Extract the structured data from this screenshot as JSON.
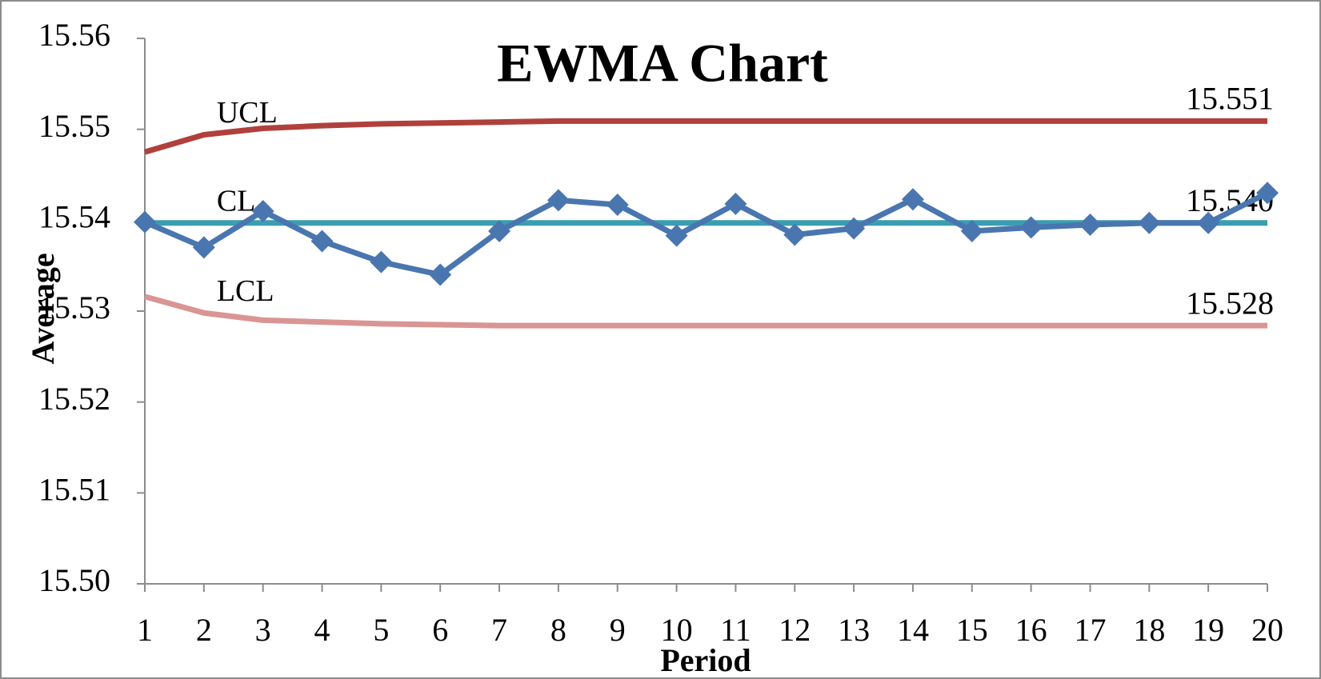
{
  "chart_data": {
    "type": "line",
    "title": "EWMA Chart",
    "x_label": "Period",
    "y_label": "Average",
    "categories": [
      "1",
      "2",
      "3",
      "4",
      "5",
      "6",
      "7",
      "8",
      "9",
      "10",
      "11",
      "12",
      "13",
      "14",
      "15",
      "16",
      "17",
      "18",
      "19",
      "20"
    ],
    "ylim": [
      15.5,
      15.56
    ],
    "yticks": [
      {
        "value": 15.5,
        "label": "15.50"
      },
      15.51,
      15.52,
      15.53,
      15.54,
      15.55,
      15.56
    ],
    "grid": false,
    "series": [
      {
        "name": "UCL",
        "color": "#b0403c",
        "values": [
          15.5475,
          15.5494,
          15.5501,
          15.5504,
          15.5506,
          15.5507,
          15.5508,
          15.5509,
          15.5509,
          15.5509,
          15.5509,
          15.5509,
          15.5509,
          15.5509,
          15.5509,
          15.5509,
          15.5509,
          15.5509,
          15.5509,
          15.5509
        ],
        "value_labels": [
          null,
          null,
          null,
          null,
          null,
          null,
          null,
          null,
          null,
          null,
          null,
          null,
          null,
          null,
          null,
          null,
          null,
          null,
          null,
          "15.551"
        ]
      },
      {
        "name": "CL",
        "color": "#3a9eb0",
        "values": [
          15.5397,
          15.5397,
          15.5397,
          15.5397,
          15.5397,
          15.5397,
          15.5397,
          15.5397,
          15.5397,
          15.5397,
          15.5397,
          15.5397,
          15.5397,
          15.5397,
          15.5397,
          15.5397,
          15.5397,
          15.5397,
          15.5397,
          15.5397
        ],
        "value_labels": [
          null,
          null,
          null,
          null,
          null,
          null,
          null,
          null,
          null,
          null,
          null,
          null,
          null,
          null,
          null,
          null,
          null,
          null,
          null,
          "15.540"
        ]
      },
      {
        "name": "LCL",
        "color": "#d99594",
        "values": [
          15.5316,
          15.5298,
          15.529,
          15.5288,
          15.5286,
          15.5285,
          15.5284,
          15.5284,
          15.5284,
          15.5284,
          15.5284,
          15.5284,
          15.5284,
          15.5284,
          15.5284,
          15.5284,
          15.5284,
          15.5284,
          15.5284,
          15.5284
        ],
        "value_labels": [
          null,
          null,
          null,
          null,
          null,
          null,
          null,
          null,
          null,
          null,
          null,
          null,
          null,
          null,
          null,
          null,
          null,
          null,
          null,
          "15.528"
        ]
      },
      {
        "color": "#4a76b0",
        "marker": "diamond",
        "values": [
          15.5398,
          15.537,
          15.541,
          15.5377,
          15.5354,
          15.534,
          15.5388,
          15.5422,
          15.5417,
          15.5383,
          15.5418,
          15.5384,
          15.5391,
          15.5423,
          15.5388,
          15.5392,
          15.5395,
          15.5397,
          15.5397,
          15.543
        ]
      }
    ]
  }
}
